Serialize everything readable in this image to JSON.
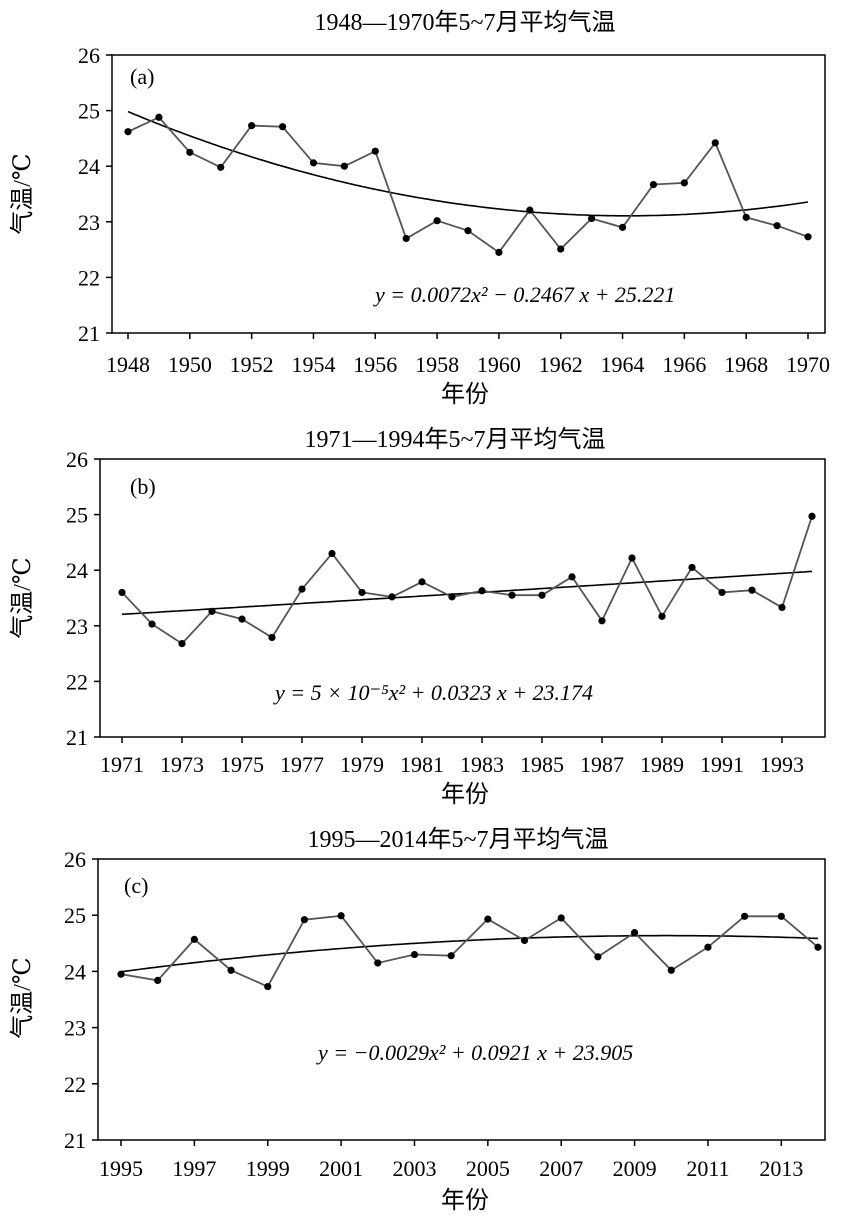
{
  "chart_data": [
    {
      "type": "line",
      "panel_label": "(a)",
      "title": "1948—1970年5~7月平均气温",
      "xlabel": "年份",
      "ylabel": "气温/℃",
      "ylim": [
        21,
        26
      ],
      "yticks": [
        "21",
        "22",
        "23",
        "24",
        "25",
        "26"
      ],
      "xlim": [
        1948,
        1970
      ],
      "xticks": [
        "1948",
        "1950",
        "1952",
        "1954",
        "1956",
        "1958",
        "1960",
        "1962",
        "1964",
        "1966",
        "1968",
        "1970"
      ],
      "grid": false,
      "series": [
        {
          "x": [
            1948,
            1949,
            1950,
            1951,
            1952,
            1953,
            1954,
            1955,
            1956,
            1957,
            1958,
            1959,
            1960,
            1961,
            1962,
            1963,
            1964,
            1965,
            1966,
            1967,
            1968,
            1969,
            1970
          ],
          "values": [
            24.62,
            24.88,
            24.25,
            23.98,
            24.73,
            24.71,
            24.06,
            24.0,
            24.27,
            22.7,
            23.02,
            22.84,
            22.45,
            23.21,
            22.51,
            23.06,
            22.9,
            23.67,
            23.7,
            24.42,
            23.08,
            22.93,
            22.73
          ]
        }
      ],
      "trendline": {
        "a": 0.0072,
        "b": -0.2467,
        "c": 25.221
      },
      "equation": "y = 0.0072x² − 0.2467 x + 25.221"
    },
    {
      "type": "line",
      "panel_label": "(b)",
      "title": "1971—1994年5~7月平均气温",
      "xlabel": "年份",
      "ylabel": "气温/℃",
      "ylim": [
        21,
        26
      ],
      "yticks": [
        "21",
        "22",
        "23",
        "24",
        "25",
        "26"
      ],
      "xlim": [
        1971,
        1994
      ],
      "xticks": [
        "1971",
        "1973",
        "1975",
        "1977",
        "1979",
        "1981",
        "1983",
        "1985",
        "1987",
        "1989",
        "1991",
        "1993"
      ],
      "grid": false,
      "series": [
        {
          "x": [
            1971,
            1972,
            1973,
            1974,
            1975,
            1976,
            1977,
            1978,
            1979,
            1980,
            1981,
            1982,
            1983,
            1984,
            1985,
            1986,
            1987,
            1988,
            1989,
            1990,
            1991,
            1992,
            1993,
            1994
          ],
          "values": [
            23.6,
            23.03,
            22.68,
            23.26,
            23.12,
            22.79,
            23.66,
            24.3,
            23.6,
            23.52,
            23.79,
            23.52,
            23.63,
            23.55,
            23.55,
            23.88,
            23.09,
            24.22,
            23.17,
            24.05,
            23.6,
            23.64,
            23.33,
            24.97
          ]
        }
      ],
      "trendline": {
        "a": 5e-05,
        "b": 0.0323,
        "c": 23.174
      },
      "equation": "y = 5 × 10⁻⁵x² + 0.0323 x + 23.174"
    },
    {
      "type": "line",
      "panel_label": "(c)",
      "title": "1995—2014年5~7月平均气温",
      "xlabel": "年份",
      "ylabel": "气温/℃",
      "ylim": [
        21,
        26
      ],
      "yticks": [
        "21",
        "22",
        "23",
        "24",
        "25",
        "26"
      ],
      "xlim": [
        1995,
        2014
      ],
      "xticks": [
        "1995",
        "1997",
        "1999",
        "2001",
        "2003",
        "2005",
        "2007",
        "2009",
        "2011",
        "2013"
      ],
      "grid": false,
      "series": [
        {
          "x": [
            1995,
            1996,
            1997,
            1998,
            1999,
            2000,
            2001,
            2002,
            2003,
            2004,
            2005,
            2006,
            2007,
            2008,
            2009,
            2010,
            2011,
            2012,
            2013,
            2014
          ],
          "values": [
            23.95,
            23.84,
            24.57,
            24.02,
            23.73,
            24.92,
            24.99,
            24.15,
            24.3,
            24.28,
            24.93,
            24.55,
            24.95,
            24.26,
            24.69,
            24.02,
            24.43,
            24.98,
            24.98,
            24.43
          ]
        }
      ],
      "trendline": {
        "a": -0.0029,
        "b": 0.0921,
        "c": 23.905
      },
      "equation": "y = −0.0029x² + 0.0921 x + 23.905"
    }
  ]
}
